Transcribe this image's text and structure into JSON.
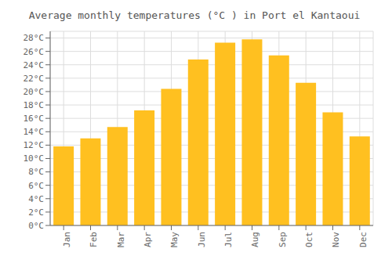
{
  "chart_data": {
    "type": "bar",
    "title": "Average monthly temperatures (°C ) in Port el Kantaoui",
    "categories": [
      "Jan",
      "Feb",
      "Mar",
      "Apr",
      "May",
      "Jun",
      "Jul",
      "Aug",
      "Sep",
      "Oct",
      "Nov",
      "Dec"
    ],
    "values": [
      11.8,
      13.0,
      14.7,
      17.2,
      20.4,
      24.8,
      27.3,
      27.8,
      25.4,
      21.3,
      16.9,
      13.3
    ],
    "color": "#FFC020",
    "ylim": [
      0,
      29
    ],
    "yticks": [
      {
        "value": 0,
        "label": "0°C"
      },
      {
        "value": 2,
        "label": "2°C"
      },
      {
        "value": 4,
        "label": "4°C"
      },
      {
        "value": 6,
        "label": "6°C"
      },
      {
        "value": 8,
        "label": "8°C"
      },
      {
        "value": 10,
        "label": "10°C"
      },
      {
        "value": 12,
        "label": "12°C"
      },
      {
        "value": 14,
        "label": "14°C"
      },
      {
        "value": 16,
        "label": "16°C"
      },
      {
        "value": 18,
        "label": "18°C"
      },
      {
        "value": 20,
        "label": "20°C"
      },
      {
        "value": 22,
        "label": "22°C"
      },
      {
        "value": 24,
        "label": "24°C"
      },
      {
        "value": 26,
        "label": "26°C"
      },
      {
        "value": 28,
        "label": "28°C"
      }
    ],
    "grid": true
  }
}
